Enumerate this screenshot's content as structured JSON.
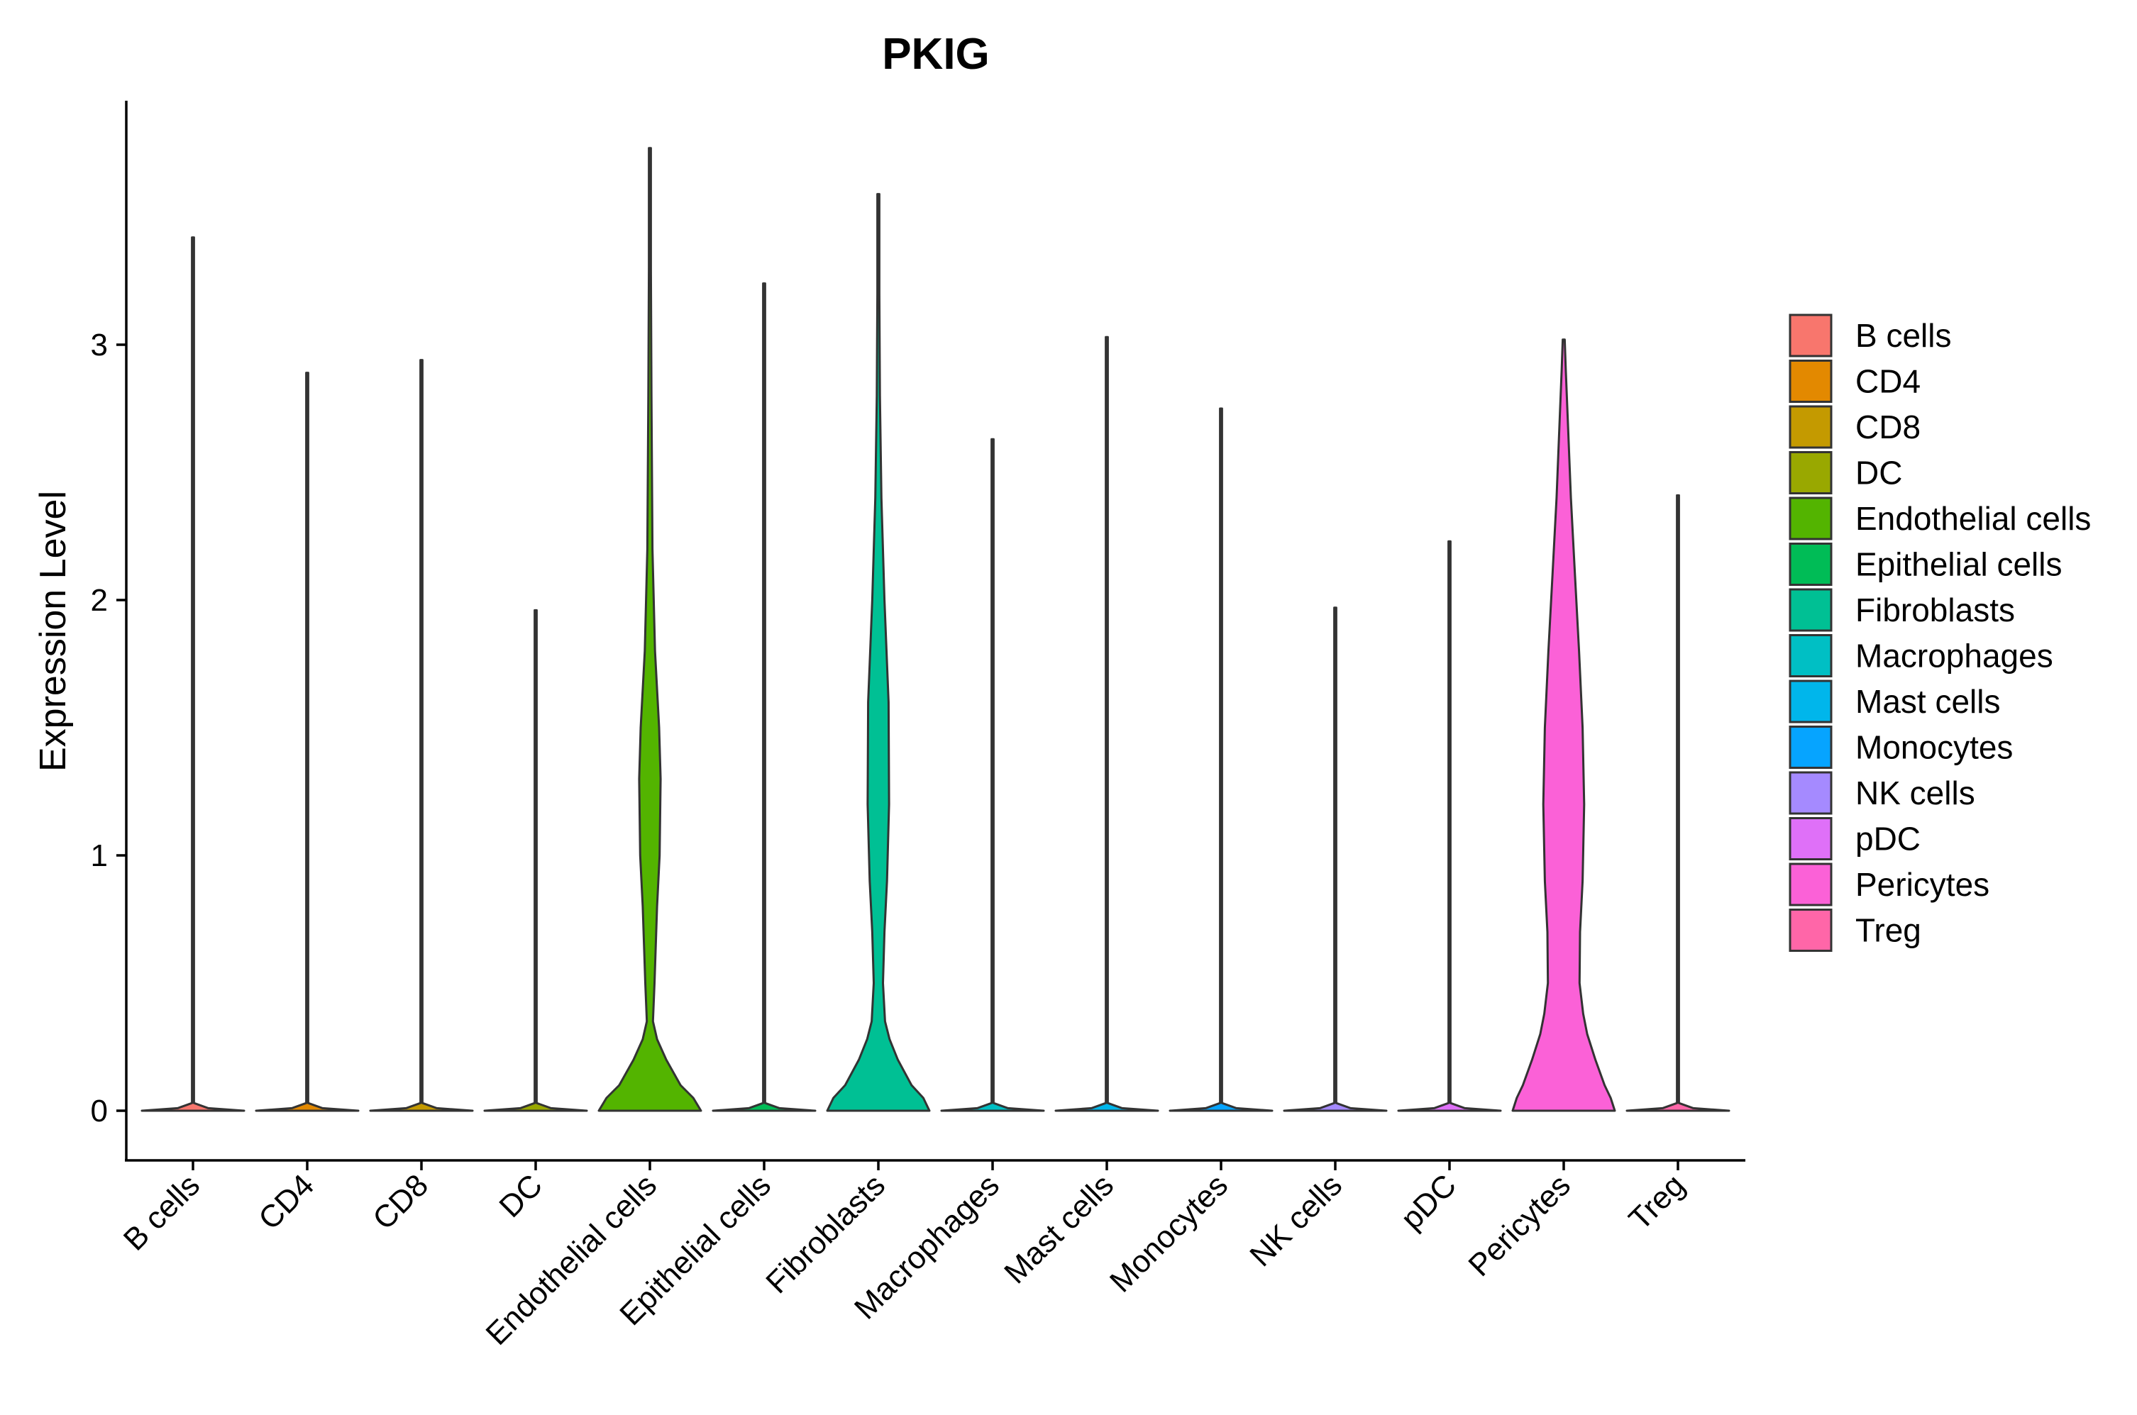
{
  "chart_data": {
    "type": "violin",
    "title": "PKIG",
    "xlabel": "",
    "ylabel": "Expression Level",
    "ylim": [
      -0.19,
      3.95
    ],
    "yticks": [
      0,
      1,
      2,
      3
    ],
    "grid": false,
    "legend": "right",
    "categories": [
      "B cells",
      "CD4",
      "CD8",
      "DC",
      "Endothelial cells",
      "Epithelial cells",
      "Fibroblasts",
      "Macrophages",
      "Mast cells",
      "Monocytes",
      "NK cells",
      "pDC",
      "Pericytes",
      "Treg"
    ],
    "colors": [
      "#F8766D",
      "#E38900",
      "#C49A00",
      "#99A800",
      "#53B400",
      "#00BC56",
      "#00C094",
      "#00BFC4",
      "#00B6EB",
      "#06A4FF",
      "#A58AFF",
      "#DF70F8",
      "#FB61D7",
      "#FF66A8"
    ],
    "max_values": [
      3.42,
      2.89,
      2.94,
      1.96,
      3.77,
      3.24,
      3.59,
      2.63,
      3.03,
      2.75,
      1.97,
      2.23,
      3.02,
      2.41
    ],
    "density_profiles": [
      {
        "name": "B cells",
        "y": [
          0,
          0.01,
          0.03,
          3.42
        ],
        "halfwidth": [
          1.0,
          0.3,
          0.02,
          0.02
        ]
      },
      {
        "name": "CD4",
        "y": [
          0,
          0.01,
          0.03,
          2.89
        ],
        "halfwidth": [
          1.0,
          0.3,
          0.02,
          0.02
        ]
      },
      {
        "name": "CD8",
        "y": [
          0,
          0.01,
          0.03,
          2.94
        ],
        "halfwidth": [
          1.0,
          0.3,
          0.02,
          0.02
        ]
      },
      {
        "name": "DC",
        "y": [
          0,
          0.01,
          0.03,
          1.96
        ],
        "halfwidth": [
          1.0,
          0.3,
          0.02,
          0.02
        ]
      },
      {
        "name": "Endothelial cells",
        "y": [
          0,
          0.05,
          0.1,
          0.2,
          0.28,
          0.35,
          0.5,
          0.8,
          1.0,
          1.3,
          1.5,
          1.8,
          2.2,
          2.8,
          3.3,
          3.77
        ],
        "halfwidth": [
          1.0,
          0.85,
          0.6,
          0.32,
          0.14,
          0.06,
          0.09,
          0.14,
          0.19,
          0.21,
          0.18,
          0.1,
          0.05,
          0.03,
          0.02,
          0.02
        ]
      },
      {
        "name": "Epithelial cells",
        "y": [
          0,
          0.01,
          0.03,
          3.24
        ],
        "halfwidth": [
          1.0,
          0.3,
          0.02,
          0.02
        ]
      },
      {
        "name": "Fibroblasts",
        "y": [
          0,
          0.05,
          0.1,
          0.2,
          0.28,
          0.35,
          0.5,
          0.7,
          0.9,
          1.2,
          1.6,
          2.0,
          2.4,
          2.8,
          3.2,
          3.59
        ],
        "halfwidth": [
          1.0,
          0.88,
          0.65,
          0.38,
          0.22,
          0.13,
          0.09,
          0.12,
          0.17,
          0.21,
          0.2,
          0.12,
          0.06,
          0.03,
          0.02,
          0.02
        ]
      },
      {
        "name": "Macrophages",
        "y": [
          0,
          0.01,
          0.03,
          2.63
        ],
        "halfwidth": [
          1.0,
          0.3,
          0.02,
          0.02
        ]
      },
      {
        "name": "Mast cells",
        "y": [
          0,
          0.01,
          0.03,
          3.03
        ],
        "halfwidth": [
          1.0,
          0.3,
          0.02,
          0.02
        ]
      },
      {
        "name": "Monocytes",
        "y": [
          0,
          0.01,
          0.03,
          2.75
        ],
        "halfwidth": [
          1.0,
          0.3,
          0.02,
          0.02
        ]
      },
      {
        "name": "NK cells",
        "y": [
          0,
          0.01,
          0.03,
          1.97
        ],
        "halfwidth": [
          1.0,
          0.3,
          0.02,
          0.02
        ]
      },
      {
        "name": "pDC",
        "y": [
          0,
          0.01,
          0.03,
          2.23
        ],
        "halfwidth": [
          1.0,
          0.3,
          0.02,
          0.02
        ]
      },
      {
        "name": "Pericytes",
        "y": [
          0,
          0.05,
          0.1,
          0.2,
          0.3,
          0.38,
          0.5,
          0.7,
          0.9,
          1.2,
          1.5,
          1.8,
          2.1,
          2.4,
          2.7,
          2.9,
          3.02
        ],
        "halfwidth": [
          1.0,
          0.92,
          0.8,
          0.62,
          0.46,
          0.38,
          0.31,
          0.32,
          0.37,
          0.4,
          0.37,
          0.3,
          0.22,
          0.14,
          0.08,
          0.04,
          0.02
        ]
      },
      {
        "name": "Treg",
        "y": [
          0,
          0.01,
          0.03,
          2.41
        ],
        "halfwidth": [
          1.0,
          0.3,
          0.02,
          0.02
        ]
      }
    ]
  }
}
